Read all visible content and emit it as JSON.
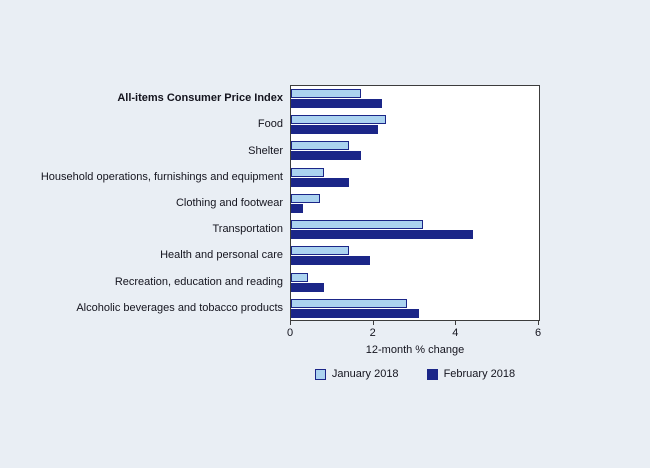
{
  "chart_data": {
    "type": "bar",
    "orientation": "horizontal",
    "categories": [
      "All-items Consumer Price Index",
      "Food",
      "Shelter",
      "Household operations, furnishings and equipment",
      "Clothing and footwear",
      "Transportation",
      "Health and personal care",
      "Recreation, education and reading",
      "Alcoholic beverages and tobacco products"
    ],
    "bold_category": "All-items Consumer Price Index",
    "series": [
      {
        "name": "January 2018",
        "color": "#abd3f0",
        "border_color": "#1b2688",
        "values": [
          1.7,
          2.3,
          1.4,
          0.8,
          0.7,
          3.2,
          1.4,
          0.4,
          2.8
        ]
      },
      {
        "name": "February 2018",
        "color": "#1b2688",
        "border_color": "#1b2688",
        "values": [
          2.2,
          2.1,
          1.7,
          1.4,
          0.3,
          4.4,
          1.9,
          0.8,
          3.1
        ]
      }
    ],
    "xlabel": "12-month % change",
    "xlim": [
      0,
      6
    ],
    "xticks": [
      "0",
      "2",
      "4",
      "6"
    ],
    "grid": false,
    "legend_position": "bottom",
    "plot_background": "#ffffff",
    "figure_background": "#e9eef4"
  }
}
